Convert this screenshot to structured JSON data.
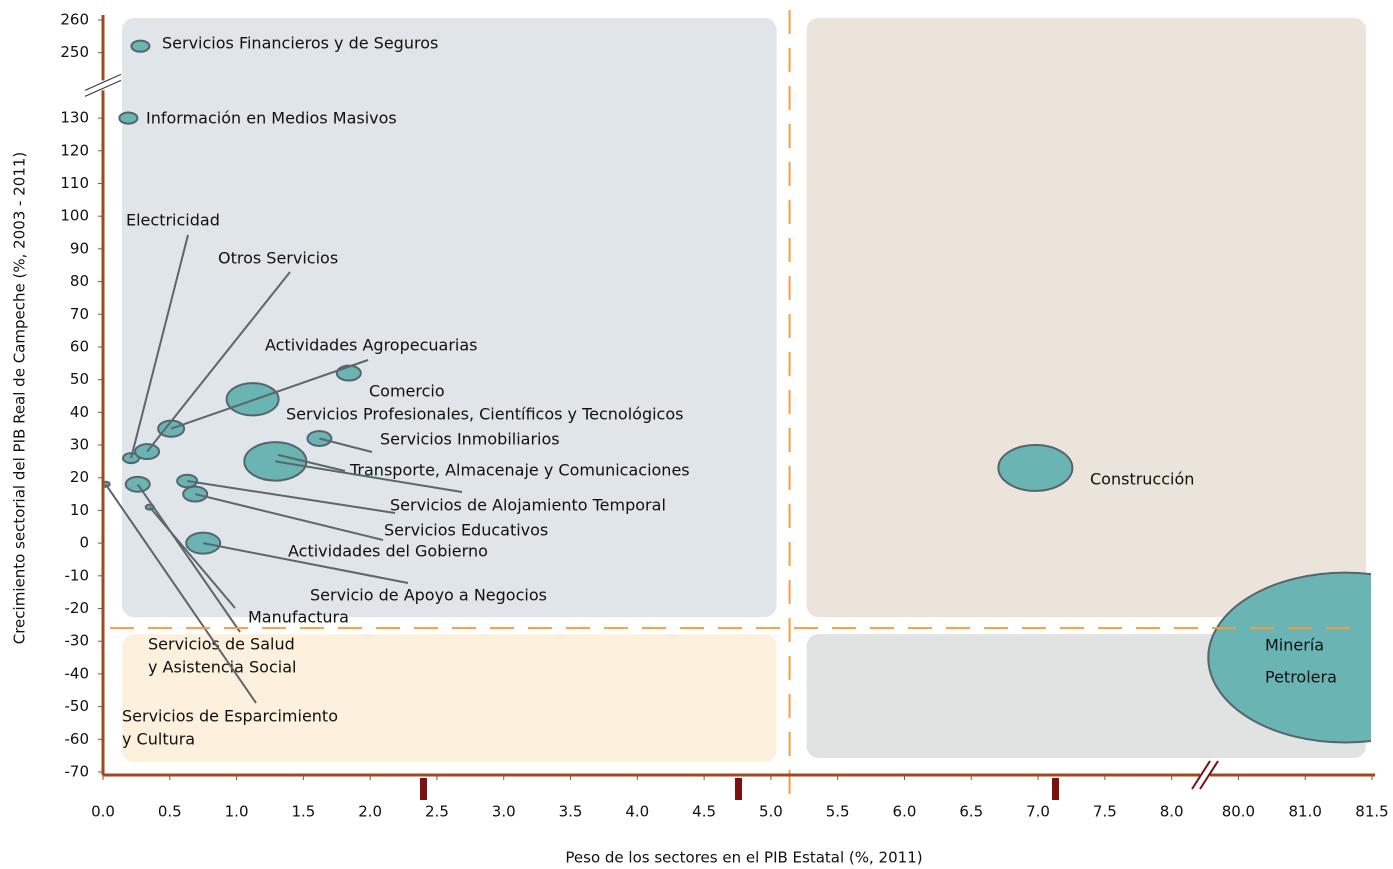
{
  "chart_data": {
    "type": "bubble",
    "x_label": "Peso de los sectores en el PIB Estatal (%, 2011)",
    "y_label": "Crecimiento sectorial del PIB Real de Campeche (%, 2003 - 2011)",
    "labels": [
      [
        "Servicios Financieros y de Seguros"
      ],
      [
        "Información en Medios Masivos"
      ],
      [
        "Electricidad"
      ],
      [
        "Otros Servicios"
      ],
      [
        "Actividades Agropecuarias"
      ],
      [
        "Comercio"
      ],
      [
        "Servicios Profesionales, Científicos y Tecnológicos"
      ],
      [
        "Servicios Inmobiliarios"
      ],
      [
        "Transporte, Almacenaje y Comunicaciones"
      ],
      [
        "Servicios de Alojamiento Temporal"
      ],
      [
        "Servicios Educativos"
      ],
      [
        "Actividades del Gobierno"
      ],
      [
        "Servicio de Apoyo a Negocios"
      ],
      [
        "Manufactura"
      ],
      [
        "Servicios de Salud",
        "y Asistencia Social"
      ],
      [
        "Servicios de Esparcimiento",
        "y Cultura"
      ],
      [
        "Construcción"
      ],
      [
        "Minería",
        "Petrolera"
      ]
    ],
    "x": [
      0.28,
      0.19,
      0.21,
      0.33,
      0.51,
      1.84,
      1.12,
      1.62,
      1.31,
      1.29,
      0.69,
      0.63,
      0.75,
      0.35,
      0.26,
      0.02,
      6.98,
      81.3
    ],
    "values": [
      252,
      130,
      26,
      28,
      35,
      52,
      44,
      32,
      27,
      25,
      15,
      19,
      0,
      11,
      18,
      18,
      23,
      -35
    ],
    "sizes": [
      9,
      9,
      8,
      12,
      13,
      12,
      26,
      12,
      12,
      31,
      12,
      10,
      17,
      4,
      12,
      4,
      37,
      137
    ],
    "colors": [
      "#6ab4b4",
      "#6ab4b4",
      "#6ab4b4",
      "#6ab4b4",
      "#6ab4b4",
      "#6ab4b4",
      "#6ab4b4",
      "#6ab4b4",
      "#3d9c9c",
      "#6ab4b4",
      "#6ab4b4",
      "#6ab4b4",
      "#6ab4b4",
      "#6ab4b4",
      "#6ab4b4",
      "#6ab4b4",
      "#6ab4b4",
      "#6ab4b4"
    ],
    "x_reference": 5.14,
    "y_reference": -26,
    "xlim": [
      0,
      81.5
    ],
    "ylim": [
      -70,
      260
    ],
    "xticks": [
      {
        "value": 0,
        "label": "0.0"
      },
      0.5,
      {
        "value": 1,
        "label": "1.0"
      },
      1.5,
      {
        "value": 2,
        "label": "2.0"
      },
      2.5,
      {
        "value": 3,
        "label": "3.0"
      },
      3.5,
      {
        "value": 4,
        "label": "4.0"
      },
      4.5,
      {
        "value": 5,
        "label": "5.0"
      },
      5.5,
      {
        "value": 6,
        "label": "6.0"
      },
      6.5,
      {
        "value": 7,
        "label": "7.0"
      },
      7.5,
      {
        "value": 8,
        "label": "8.0"
      },
      {
        "value": 80,
        "label": "80.0"
      },
      {
        "value": 81,
        "label": "81.0"
      },
      81.5
    ],
    "yticks": [
      -70,
      -60,
      -50,
      -40,
      -30,
      -20,
      -10,
      0,
      10,
      20,
      30,
      40,
      50,
      60,
      70,
      80,
      90,
      100,
      110,
      120,
      130,
      250,
      260
    ]
  }
}
